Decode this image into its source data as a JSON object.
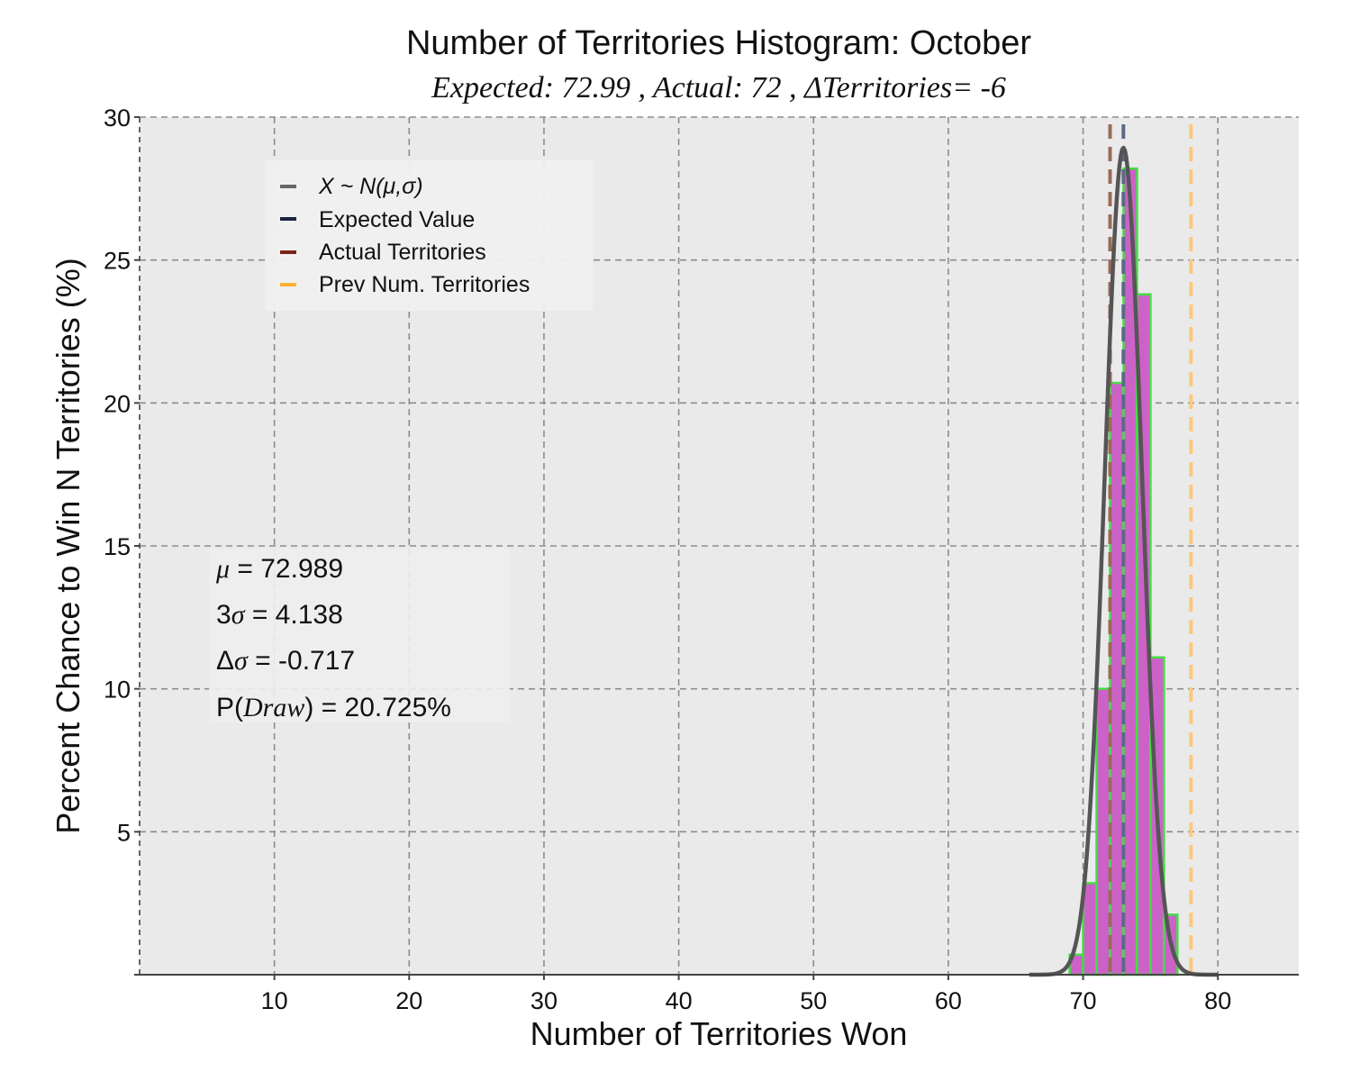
{
  "chart_data": {
    "type": "bar",
    "title": "Number of Territories Histogram: October",
    "subtitle": "Expected: 72.99 , Actual: 72 , ΔTerritories= -6",
    "xlabel": "Number of Territories Won",
    "ylabel": "Percent Chance to Win N Territories (%)",
    "xlim": [
      0,
      86
    ],
    "ylim": [
      0,
      30
    ],
    "xticks": [
      10,
      20,
      30,
      40,
      50,
      60,
      70,
      80
    ],
    "yticks": [
      5,
      10,
      15,
      20,
      25,
      30
    ],
    "grid": true,
    "histogram": {
      "bin_width": 1,
      "bins": [
        {
          "x": 69,
          "value": 0.7
        },
        {
          "x": 70,
          "value": 3.2
        },
        {
          "x": 71,
          "value": 10.0
        },
        {
          "x": 72,
          "value": 20.7
        },
        {
          "x": 73,
          "value": 28.2
        },
        {
          "x": 74,
          "value": 23.8
        },
        {
          "x": 75,
          "value": 11.1
        },
        {
          "x": 76,
          "value": 2.1
        }
      ],
      "fill_color": "#cc62c8",
      "edge_color": "#44dd44"
    },
    "normal_curve": {
      "mu": 72.989,
      "sigma": 1.379,
      "x_range": [
        66,
        80
      ],
      "color": "#555555"
    },
    "vlines": [
      {
        "name": "Expected Value",
        "x": 72.99,
        "color": "#5a6a88"
      },
      {
        "name": "Actual Territories",
        "x": 72,
        "color": "#9a6a5a"
      },
      {
        "name": "Prev Num. Territories",
        "x": 78,
        "color": "#ffc878"
      }
    ],
    "legend": {
      "placement": "upper-left",
      "entries": [
        {
          "label": "X ~ N(μ,σ)",
          "color": "#666666",
          "italic": true
        },
        {
          "label": "Expected Value",
          "color": "#1a2440",
          "italic": false
        },
        {
          "label": "Actual Territories",
          "color": "#7a2418",
          "italic": false
        },
        {
          "label": "Prev Num. Territories",
          "color": "#ffb030",
          "italic": false
        }
      ]
    },
    "stats": {
      "mu_label": "μ",
      "mu_value": " = 72.989",
      "sigma3_prefix": "3",
      "sigma3_symbol": "σ",
      "sigma3_value": " = 4.138",
      "dsigma_prefix": "Δ",
      "dsigma_symbol": "σ",
      "dsigma_value": " = -0.717",
      "pdraw_prefix": "P(",
      "pdraw_symbol": "Draw",
      "pdraw_value": ") = 20.725%"
    }
  }
}
